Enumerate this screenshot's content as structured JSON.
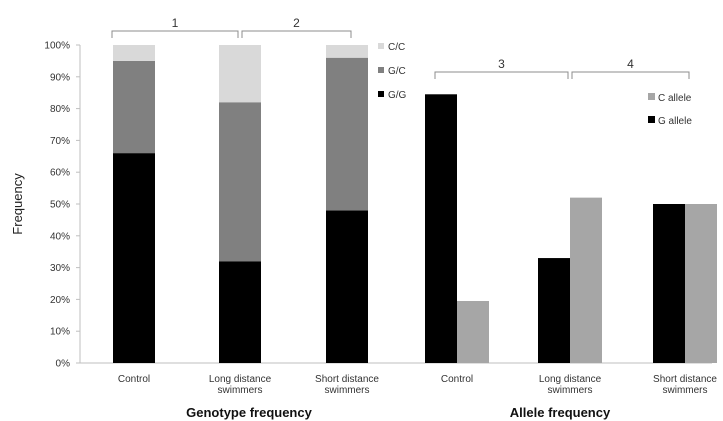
{
  "chart_data": {
    "type": "bar",
    "ylabel": "Frequency",
    "ylim": [
      0,
      100
    ],
    "yticks": [
      "0%",
      "10%",
      "20%",
      "30%",
      "40%",
      "50%",
      "60%",
      "70%",
      "80%",
      "90%",
      "100%"
    ],
    "grid": false,
    "panels": [
      {
        "title": "Genotype frequency",
        "stacked": true,
        "categories": [
          "Control",
          "Long distance swimmers",
          "Short distance swimmers"
        ],
        "category_lines": [
          [
            "Control"
          ],
          [
            "Long distance",
            "swimmers"
          ],
          [
            "Short distance",
            "swimmers"
          ]
        ],
        "legend_placement": "top-right",
        "series": [
          {
            "name": "G/G",
            "color": "#000000",
            "values": [
              66,
              32,
              48
            ]
          },
          {
            "name": "G/C",
            "color": "#808080",
            "values": [
              29,
              50,
              48
            ]
          },
          {
            "name": "C/C",
            "color": "#d9d9d9",
            "values": [
              5,
              18,
              4
            ]
          }
        ],
        "brackets": [
          {
            "label": "1",
            "from": 0,
            "to": 1
          },
          {
            "label": "2",
            "from": 1,
            "to": 2
          }
        ]
      },
      {
        "title": "Allele frequency",
        "stacked": false,
        "categories": [
          "Control",
          "Long distance swimmers",
          "Short distance swimmers"
        ],
        "category_lines": [
          [
            "Control"
          ],
          [
            "Long distance",
            "swimmers"
          ],
          [
            "Short distance",
            "swimmers"
          ]
        ],
        "legend_placement": "top-right",
        "series": [
          {
            "name": "G allele",
            "color": "#000000",
            "values": [
              84.5,
              33,
              50
            ]
          },
          {
            "name": "C allele",
            "color": "#a6a6a6",
            "values": [
              19.5,
              52,
              50
            ]
          }
        ],
        "brackets": [
          {
            "label": "3",
            "from": 0,
            "to": 1
          },
          {
            "label": "4",
            "from": 1,
            "to": 2
          }
        ]
      }
    ]
  }
}
